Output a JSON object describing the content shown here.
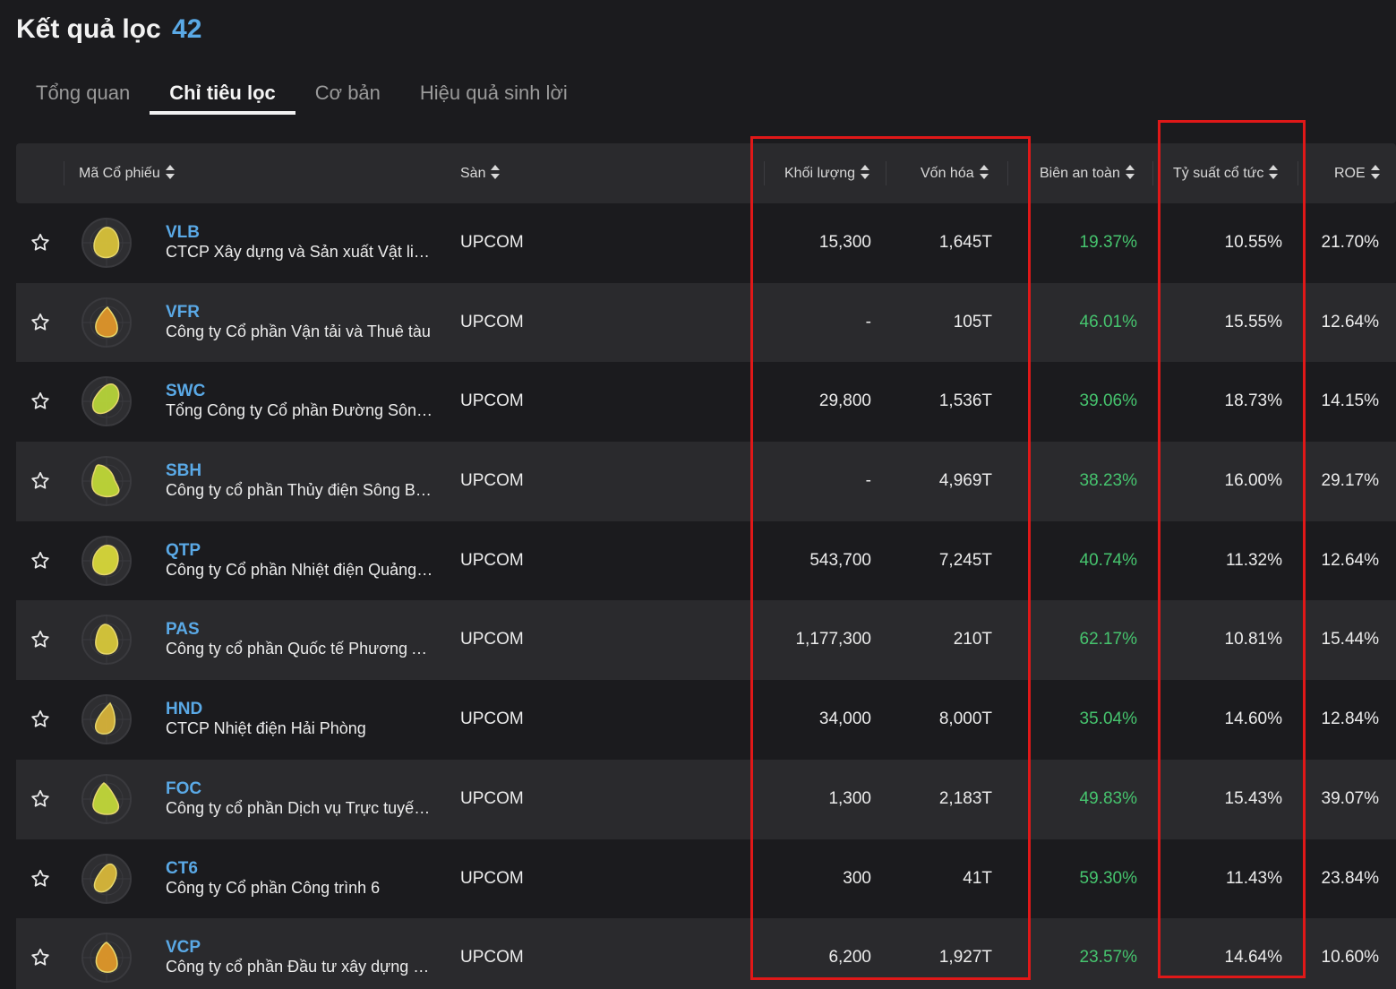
{
  "header": {
    "title": "Kết quả lọc",
    "count": "42"
  },
  "tabs": [
    {
      "label": "Tổng quan",
      "active": false
    },
    {
      "label": "Chỉ tiêu lọc",
      "active": true
    },
    {
      "label": "Cơ bản",
      "active": false
    },
    {
      "label": "Hiệu quả sinh lời",
      "active": false
    }
  ],
  "columns": {
    "ticker": "Mã Cổ phiếu",
    "exchange": "Sàn",
    "volume": "Khối lượng",
    "market_cap": "Vốn hóa",
    "safety_margin": "Biên an toàn",
    "dividend_yield": "Tỷ suất cổ tức",
    "roe": "ROE"
  },
  "colors": {
    "accent": "#5aa9e6",
    "positive": "#46c46e",
    "highlight": "#e01818"
  },
  "rows": [
    {
      "ticker": "VLB",
      "company": "CTCP Xây dựng và Sản xuất Vật liệu ...",
      "exchange": "UPCOM",
      "volume": "15,300",
      "market_cap": "1,645T",
      "safety_margin": "19.37%",
      "dividend_yield": "10.55%",
      "roe": "21.70%",
      "logo_color": "#d8c23a"
    },
    {
      "ticker": "VFR",
      "company": "Công ty Cổ phần Vận tải và Thuê tàu",
      "exchange": "UPCOM",
      "volume": "-",
      "market_cap": "105T",
      "safety_margin": "46.01%",
      "dividend_yield": "15.55%",
      "roe": "12.64%",
      "logo_color": "#e0962a"
    },
    {
      "ticker": "SWC",
      "company": "Tổng Công ty Cổ phần Đường Sông ...",
      "exchange": "UPCOM",
      "volume": "29,800",
      "market_cap": "1,536T",
      "safety_margin": "39.06%",
      "dividend_yield": "18.73%",
      "roe": "14.15%",
      "logo_color": "#b6d43a"
    },
    {
      "ticker": "SBH",
      "company": "Công ty cổ phần Thủy điện Sông Ba ...",
      "exchange": "UPCOM",
      "volume": "-",
      "market_cap": "4,969T",
      "safety_margin": "38.23%",
      "dividend_yield": "16.00%",
      "roe": "29.17%",
      "logo_color": "#c0d838"
    },
    {
      "ticker": "QTP",
      "company": "Công ty Cổ phần Nhiệt điện Quảng N...",
      "exchange": "UPCOM",
      "volume": "543,700",
      "market_cap": "7,245T",
      "safety_margin": "40.74%",
      "dividend_yield": "11.32%",
      "roe": "12.64%",
      "logo_color": "#d8d83a"
    },
    {
      "ticker": "PAS",
      "company": "Công ty cổ phần Quốc tế Phương Anh",
      "exchange": "UPCOM",
      "volume": "1,177,300",
      "market_cap": "210T",
      "safety_margin": "62.17%",
      "dividend_yield": "10.81%",
      "roe": "15.44%",
      "logo_color": "#d8c83a"
    },
    {
      "ticker": "HND",
      "company": "CTCP Nhiệt điện Hải Phòng",
      "exchange": "UPCOM",
      "volume": "34,000",
      "market_cap": "8,000T",
      "safety_margin": "35.04%",
      "dividend_yield": "14.60%",
      "roe": "12.84%",
      "logo_color": "#d6b23a"
    },
    {
      "ticker": "FOC",
      "company": "Công ty cổ phần Dịch vụ Trực tuyến ...",
      "exchange": "UPCOM",
      "volume": "1,300",
      "market_cap": "2,183T",
      "safety_margin": "49.83%",
      "dividend_yield": "15.43%",
      "roe": "39.07%",
      "logo_color": "#c2d83a"
    },
    {
      "ticker": "CT6",
      "company": "Công ty Cổ phần Công trình 6",
      "exchange": "UPCOM",
      "volume": "300",
      "market_cap": "41T",
      "safety_margin": "59.30%",
      "dividend_yield": "11.43%",
      "roe": "23.84%",
      "logo_color": "#d8b83a"
    },
    {
      "ticker": "VCP",
      "company": "Công ty cổ phần Đầu tư xây dựng và ...",
      "exchange": "UPCOM",
      "volume": "6,200",
      "market_cap": "1,927T",
      "safety_margin": "23.57%",
      "dividend_yield": "14.64%",
      "roe": "10.60%",
      "logo_color": "#e0982a"
    }
  ]
}
